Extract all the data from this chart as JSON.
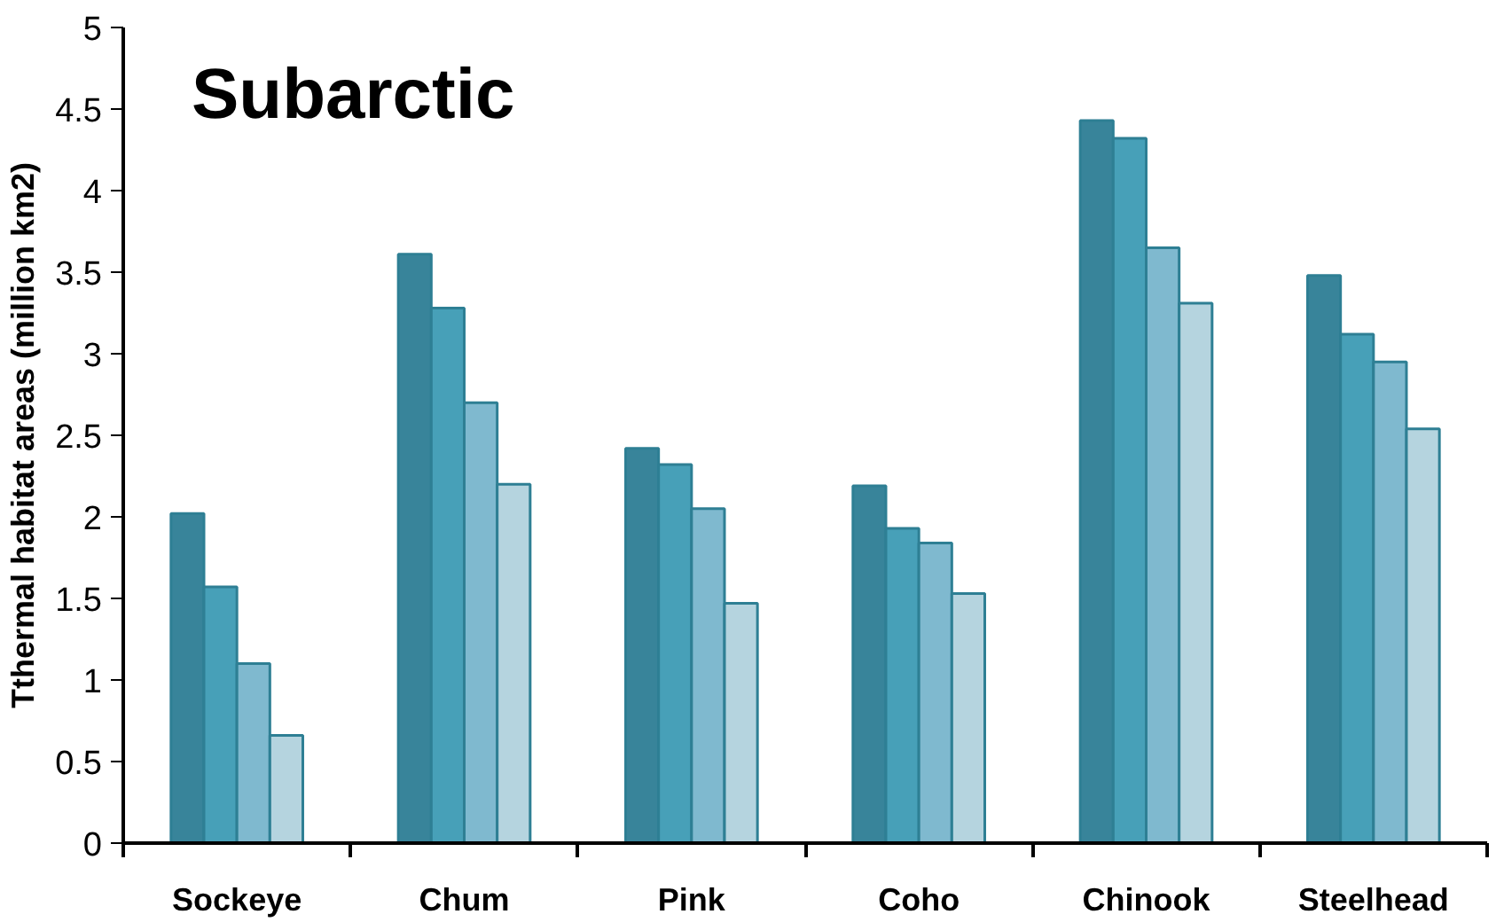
{
  "chart_data": {
    "type": "bar",
    "title": "Subarctic",
    "ylabel": "Tthermal habitat areas (million km2)",
    "categories": [
      "Sockeye",
      "Chum",
      "Pink",
      "Coho",
      "Chinook",
      "Steelhead"
    ],
    "series": [
      {
        "color": "#38849a",
        "values": [
          2.02,
          3.61,
          2.42,
          2.19,
          4.43,
          3.48
        ]
      },
      {
        "color": "#47a0b8",
        "values": [
          1.57,
          3.28,
          2.32,
          1.93,
          4.32,
          3.12
        ]
      },
      {
        "color": "#7fb9cf",
        "values": [
          1.1,
          2.7,
          2.05,
          1.84,
          3.65,
          2.95
        ]
      },
      {
        "color": "#b5d4df",
        "values": [
          0.66,
          2.2,
          1.47,
          1.53,
          3.31,
          2.54
        ]
      }
    ],
    "ylim": [
      0,
      5
    ],
    "yticks": [
      0,
      0.5,
      1,
      1.5,
      2,
      2.5,
      3,
      3.5,
      4,
      4.5,
      5
    ],
    "grid": false
  }
}
